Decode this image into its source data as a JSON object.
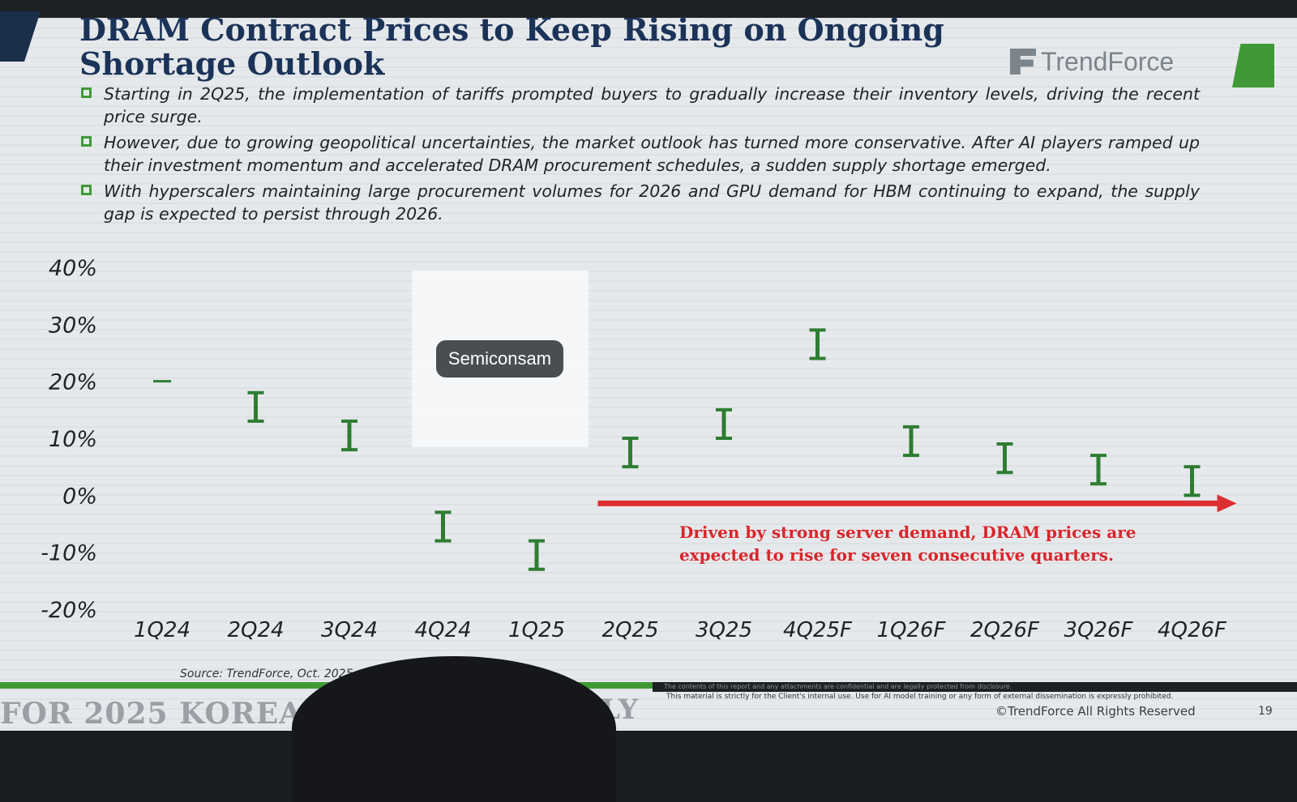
{
  "slide": {
    "title": "DRAM Contract Prices to Keep Rising on Ongoing Shortage Outlook",
    "brand": "TrendForce",
    "bullets": [
      "Starting in 2Q25, the implementation of tariffs prompted buyers to gradually increase their inventory levels, driving the recent price surge.",
      "However, due to growing geopolitical uncertainties, the market outlook has turned more conservative. After AI players ramped up their investment momentum and accelerated DRAM procurement schedules, a sudden supply shortage emerged.",
      "With hyperscalers maintaining large procurement volumes for 2026 and GPU demand for HBM continuing to expand, the supply gap is expected to persist through 2026."
    ],
    "source": "Source: TrendForce, Oct. 2025",
    "footer_bar_text": "The contents of this report and any attachments are confidential and are legally protected from disclosure.",
    "disclaimer": "This material is strictly for the Client's internal use. Use for AI model training or any form of external dissemination is expressly prohibited.",
    "rights": "©TrendForce All Rights Reserved",
    "page_number": "19",
    "footer_left": "FOR 2025 KOREA R",
    "footer_right": "NLY",
    "watermark_label": "Semiconsam"
  },
  "chart_data": {
    "type": "range",
    "categories": [
      "1Q24",
      "2Q24",
      "3Q24",
      "4Q24",
      "1Q25",
      "2Q25",
      "3Q25",
      "4Q25F",
      "1Q26F",
      "2Q26F",
      "3Q26F",
      "4Q26F"
    ],
    "series": [
      {
        "low": [
          20,
          13,
          8,
          -8,
          -13,
          5,
          10,
          24,
          7,
          4,
          2,
          0
        ],
        "high": [
          20,
          18,
          13,
          -3,
          -8,
          10,
          15,
          29,
          12,
          9,
          7,
          5
        ]
      }
    ],
    "ylim": [
      -20,
      40
    ],
    "yticks": [
      -20,
      -10,
      0,
      10,
      20,
      30,
      40
    ],
    "ytick_labels": [
      "-20%",
      "-10%",
      "0%",
      "10%",
      "20%",
      "30%",
      "40%"
    ],
    "annotation": "Driven by strong server demand, DRAM prices are expected to rise for seven consecutive quarters.",
    "arrow": {
      "from": "2Q25",
      "to": "4Q26F",
      "y": 0
    },
    "colors": {
      "bars": "#2e7d32",
      "arrow": "#dc2f32",
      "annotation": "#d8262b",
      "axis_text": "#1f2326"
    }
  }
}
